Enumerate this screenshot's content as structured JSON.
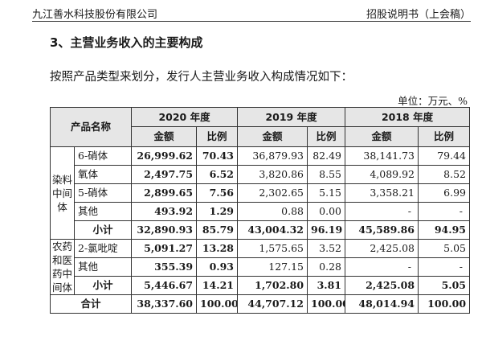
{
  "header": {
    "company_name": "九江善水科技股份有限公司",
    "doc_name": "招股说明书（上会稿）"
  },
  "section_title": "3、主营业务收入的主要构成",
  "intro": "按照产品类型来划分，发行人主营业务收入构成情况如下：",
  "unit": "单位：万元、%",
  "table": {
    "product_header": "产品名称",
    "years": [
      "2020 年度",
      "2019 年度",
      "2018 年度"
    ],
    "amount_label": "金额",
    "ratio_label": "比例",
    "groups": [
      {
        "name": "染料中间体",
        "rows": [
          {
            "product": "6-硝体",
            "v": [
              "26,999.62",
              "70.43",
              "36,879.93",
              "82.49",
              "38,141.73",
              "79.44"
            ]
          },
          {
            "product": "氧体",
            "v": [
              "2,497.75",
              "6.52",
              "3,820.86",
              "8.55",
              "4,089.92",
              "8.52"
            ]
          },
          {
            "product": "5-硝体",
            "v": [
              "2,899.65",
              "7.56",
              "2,302.65",
              "5.15",
              "3,358.21",
              "6.99"
            ]
          },
          {
            "product": "其他",
            "v": [
              "493.92",
              "1.29",
              "0.88",
              "0.00",
              "-",
              "-"
            ]
          }
        ],
        "subtotal_label": "小计",
        "subtotal": [
          "32,890.93",
          "85.79",
          "43,004.32",
          "96.19",
          "45,589.86",
          "94.95"
        ]
      },
      {
        "name": "农药和医药中间体",
        "rows": [
          {
            "product": "2-氯吡啶",
            "v": [
              "5,091.27",
              "13.28",
              "1,575.65",
              "3.52",
              "2,425.08",
              "5.05"
            ]
          },
          {
            "product": "其他",
            "v": [
              "355.39",
              "0.93",
              "127.15",
              "0.28",
              "-",
              "-"
            ]
          }
        ],
        "subtotal_label": "小计",
        "subtotal": [
          "5,446.67",
          "14.21",
          "1,702.80",
          "3.81",
          "2,425.08",
          "5.05"
        ]
      }
    ],
    "total_label": "合计",
    "total": [
      "38,337.60",
      "100.00",
      "44,707.12",
      "100.00",
      "48,014.94",
      "100.00"
    ]
  }
}
